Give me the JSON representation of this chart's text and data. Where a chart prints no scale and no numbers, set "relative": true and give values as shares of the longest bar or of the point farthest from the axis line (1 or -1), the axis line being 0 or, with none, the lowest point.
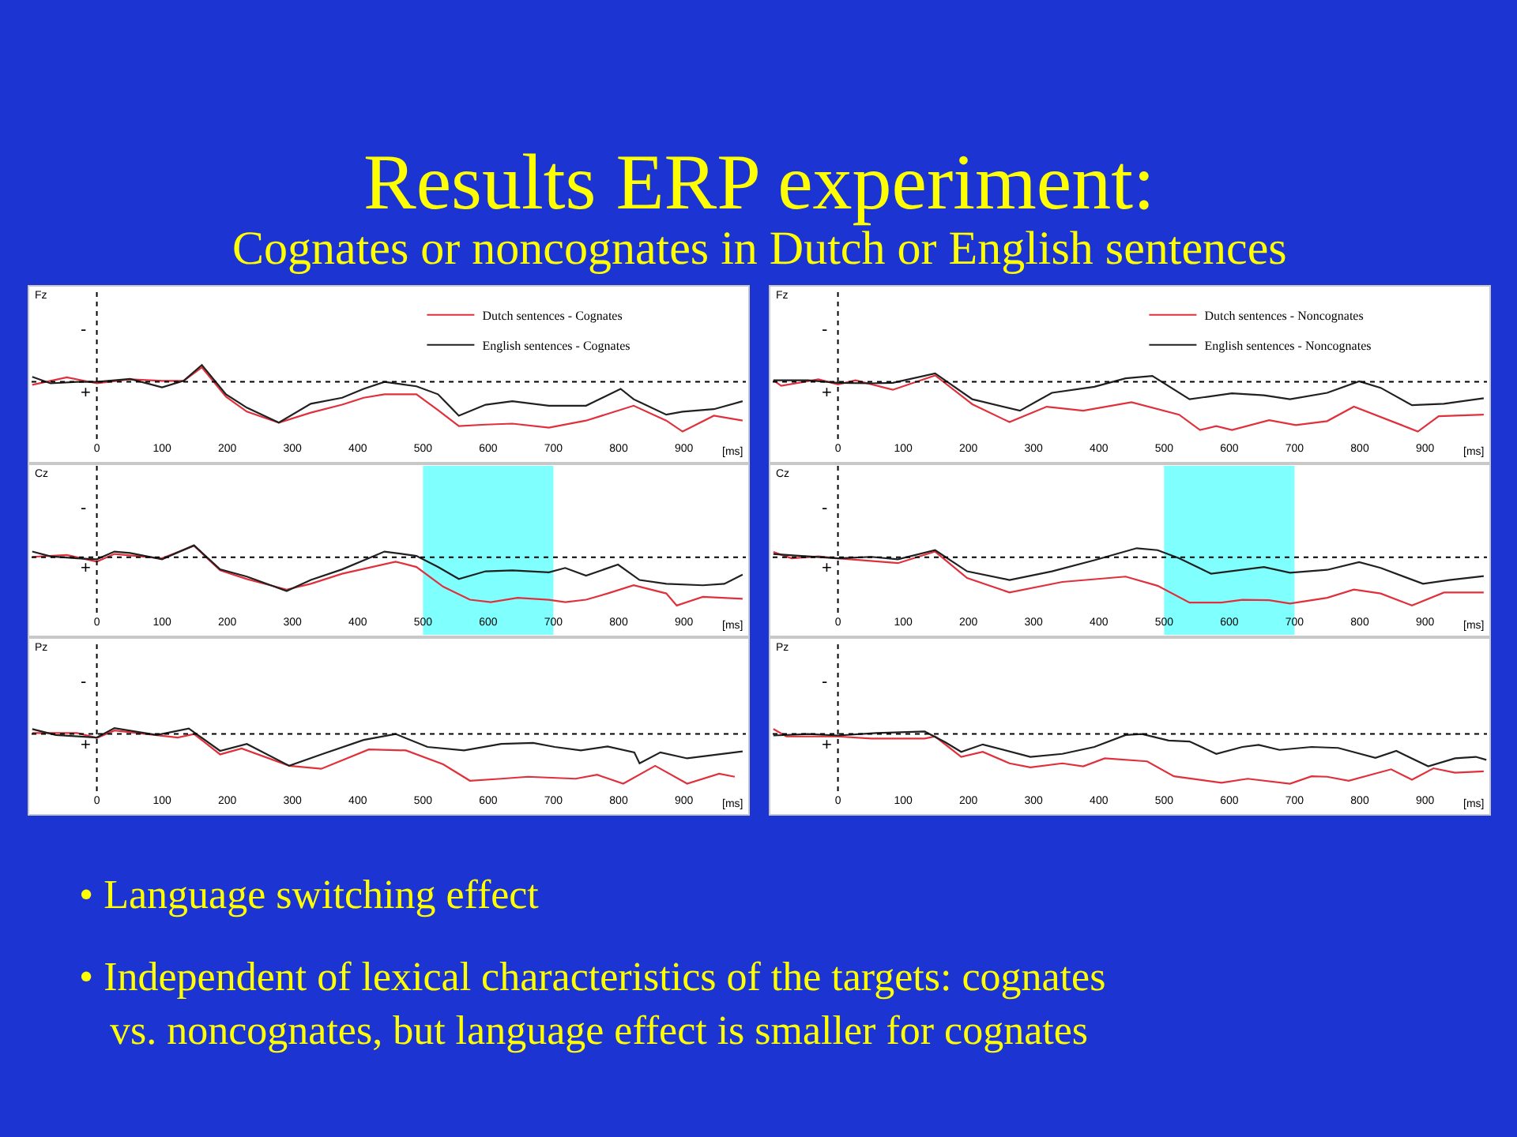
{
  "chart_data": [
    {
      "type": "other",
      "title": "Results ERP experiment:",
      "subtitle": "Cognates or noncognates in Dutch or English sentences",
      "annotations": [
        "• Language switching effect",
        "• Independent of lexical characteristics of the targets: cognates vs. noncognates, but language effect is smaller for cognates"
      ]
    },
    {
      "type": "line",
      "title": "Fz",
      "xlabel": "[ms]",
      "relative": true,
      "xlim": [
        -100,
        995
      ],
      "xticks": [
        0,
        100,
        200,
        300,
        400,
        500,
        600,
        700,
        800,
        900
      ],
      "legend": "top right",
      "annotations": [
        "-",
        "+"
      ],
      "ref_lines": [
        {
          "axis": "x",
          "value": 0,
          "line_style": "dotted",
          "color": "#000000"
        }
      ],
      "series": [
        {
          "name": "Dutch sentences - Cognates",
          "color": "#e0303c",
          "x": [
            -99,
            -71,
            -46,
            0,
            51,
            100,
            133,
            161,
            198,
            230,
            279,
            328,
            376,
            409,
            441,
            490,
            523,
            555,
            596,
            637,
            693,
            750,
            823,
            873,
            898,
            946,
            990
          ],
          "values": [
            -0.06,
            0.02,
            0.09,
            -0.03,
            0.05,
            0.02,
            0.02,
            0.29,
            -0.3,
            -0.6,
            -0.82,
            -0.62,
            -0.46,
            -0.32,
            -0.25,
            -0.25,
            -0.57,
            -0.89,
            -0.86,
            -0.84,
            -0.92,
            -0.78,
            -0.48,
            -0.78,
            -1,
            -0.68,
            -0.78
          ]
        },
        {
          "name": "English sentences - Cognates",
          "color": "#202020",
          "x": [
            -99,
            -71,
            -30,
            0,
            51,
            100,
            133,
            161,
            198,
            230,
            279,
            328,
            376,
            409,
            441,
            490,
            523,
            555,
            596,
            637,
            693,
            750,
            803,
            823,
            873,
            898,
            946,
            990
          ],
          "values": [
            0.1,
            -0.03,
            0,
            0,
            0.06,
            -0.11,
            0.02,
            0.34,
            -0.25,
            -0.52,
            -0.82,
            -0.44,
            -0.32,
            -0.14,
            0,
            -0.09,
            -0.25,
            -0.68,
            -0.46,
            -0.39,
            -0.48,
            -0.48,
            -0.14,
            -0.35,
            -0.66,
            -0.6,
            -0.55,
            -0.39
          ]
        }
      ]
    },
    {
      "type": "line",
      "title": "Fz",
      "xlabel": "[ms]",
      "relative": true,
      "xlim": [
        -100,
        995
      ],
      "xticks": [
        0,
        100,
        200,
        300,
        400,
        500,
        600,
        700,
        800,
        900
      ],
      "legend": "top right",
      "annotations": [
        "-",
        "+"
      ],
      "ref_lines": [
        {
          "axis": "x",
          "value": 0,
          "line_style": "dotted",
          "color": "#000000"
        }
      ],
      "series": [
        {
          "name": "Dutch sentences - Noncognates",
          "color": "#e0303c",
          "x": [
            -99,
            -87,
            -30,
            0,
            27,
            84,
            149,
            206,
            263,
            320,
            376,
            450,
            523,
            555,
            580,
            604,
            661,
            702,
            750,
            791,
            864,
            889,
            921,
            990
          ],
          "values": [
            0.03,
            -0.08,
            0.05,
            -0.05,
            0.03,
            -0.16,
            0.13,
            -0.45,
            -0.81,
            -0.5,
            -0.58,
            -0.41,
            -0.66,
            -0.97,
            -0.89,
            -0.97,
            -0.77,
            -0.87,
            -0.79,
            -0.5,
            -0.87,
            -1,
            -0.69,
            -0.66
          ]
        },
        {
          "name": "English sentences - Noncognates",
          "color": "#202020",
          "x": [
            -99,
            -46,
            0,
            51,
            84,
            149,
            206,
            279,
            328,
            393,
            441,
            482,
            539,
            604,
            653,
            693,
            750,
            799,
            832,
            880,
            929,
            990
          ],
          "values": [
            0.03,
            0.03,
            -0.02,
            -0.03,
            -0.02,
            0.17,
            -0.35,
            -0.58,
            -0.22,
            -0.1,
            0.07,
            0.12,
            -0.35,
            -0.23,
            -0.27,
            -0.35,
            -0.22,
            0.01,
            -0.12,
            -0.47,
            -0.44,
            -0.33
          ]
        }
      ]
    },
    {
      "type": "line",
      "title": "Cz",
      "xlabel": "[ms]",
      "relative": true,
      "xlim": [
        -100,
        995
      ],
      "xticks": [
        0,
        100,
        200,
        300,
        400,
        500,
        600,
        700,
        800,
        900
      ],
      "annotations": [
        "-",
        "+"
      ],
      "ref_lines": [
        {
          "axis": "x",
          "value": 0,
          "line_style": "dotted",
          "color": "#000000"
        }
      ],
      "bands": [
        {
          "axis": "x",
          "from": 500,
          "to": 700,
          "color": "#80ffff"
        }
      ],
      "series": [
        {
          "color": "#e0303c",
          "x": [
            -99,
            -46,
            0,
            27,
            100,
            149,
            189,
            230,
            291,
            328,
            376,
            458,
            490,
            531,
            572,
            604,
            645,
            693,
            718,
            750,
            783,
            823,
            873,
            889,
            929,
            990
          ],
          "values": [
            0.01,
            0.05,
            -0.09,
            0.07,
            -0.02,
            0.24,
            -0.27,
            -0.45,
            -0.67,
            -0.55,
            -0.34,
            -0.09,
            -0.2,
            -0.61,
            -0.88,
            -0.93,
            -0.84,
            -0.88,
            -0.93,
            -0.88,
            -0.75,
            -0.58,
            -0.75,
            -1,
            -0.82,
            -0.86
          ]
        },
        {
          "color": "#202020",
          "x": [
            -99,
            -71,
            -30,
            0,
            27,
            51,
            100,
            149,
            189,
            230,
            291,
            328,
            376,
            441,
            490,
            523,
            555,
            596,
            637,
            693,
            718,
            750,
            799,
            832,
            873,
            929,
            962,
            990
          ],
          "values": [
            0.12,
            0.02,
            -0.02,
            -0.04,
            0.12,
            0.09,
            -0.04,
            0.25,
            -0.25,
            -0.4,
            -0.7,
            -0.47,
            -0.25,
            0.12,
            0.03,
            -0.2,
            -0.45,
            -0.29,
            -0.27,
            -0.31,
            -0.22,
            -0.38,
            -0.15,
            -0.47,
            -0.55,
            -0.58,
            -0.55,
            -0.36
          ]
        }
      ]
    },
    {
      "type": "line",
      "title": "Cz",
      "xlabel": "[ms]",
      "relative": true,
      "xlim": [
        -100,
        995
      ],
      "xticks": [
        0,
        100,
        200,
        300,
        400,
        500,
        600,
        700,
        800,
        900
      ],
      "annotations": [
        "-",
        "+"
      ],
      "ref_lines": [
        {
          "axis": "x",
          "value": 0,
          "line_style": "dotted",
          "color": "#000000"
        }
      ],
      "bands": [
        {
          "axis": "x",
          "from": 500,
          "to": 700,
          "color": "#80ffff"
        }
      ],
      "series": [
        {
          "color": "#e0303c",
          "x": [
            -99,
            -71,
            -30,
            0,
            92,
            149,
            198,
            263,
            344,
            441,
            490,
            539,
            588,
            620,
            661,
            693,
            750,
            791,
            832,
            880,
            929,
            990
          ],
          "values": [
            0.11,
            -0.02,
            0.02,
            -0.02,
            -0.12,
            0.12,
            -0.43,
            -0.73,
            -0.51,
            -0.4,
            -0.59,
            -0.94,
            -0.94,
            -0.88,
            -0.89,
            -0.96,
            -0.84,
            -0.67,
            -0.75,
            -1,
            -0.73,
            -0.73
          ]
        },
        {
          "color": "#202020",
          "x": [
            -99,
            -46,
            0,
            51,
            92,
            149,
            198,
            263,
            328,
            393,
            458,
            490,
            523,
            572,
            653,
            693,
            750,
            799,
            832,
            897,
            937,
            990
          ],
          "values": [
            0.07,
            0.02,
            -0.02,
            0.01,
            -0.04,
            0.15,
            -0.29,
            -0.47,
            -0.29,
            -0.06,
            0.19,
            0.15,
            -0.02,
            -0.34,
            -0.2,
            -0.32,
            -0.26,
            -0.1,
            -0.22,
            -0.55,
            -0.47,
            -0.39
          ]
        }
      ]
    },
    {
      "type": "line",
      "title": "Pz",
      "xlabel": "[ms]",
      "relative": true,
      "xlim": [
        -100,
        995
      ],
      "xticks": [
        0,
        100,
        200,
        300,
        400,
        500,
        600,
        700,
        800,
        900
      ],
      "annotations": [
        "-",
        "+"
      ],
      "ref_lines": [
        {
          "axis": "x",
          "value": 0,
          "line_style": "dotted",
          "color": "#000000"
        }
      ],
      "series": [
        {
          "color": "#e0303c",
          "x": [
            -99,
            -30,
            0,
            27,
            76,
            124,
            149,
            189,
            222,
            295,
            344,
            417,
            474,
            531,
            572,
            620,
            661,
            734,
            767,
            807,
            856,
            905,
            954,
            978
          ],
          "values": [
            0.02,
            0.02,
            -0.08,
            0.07,
            0,
            -0.07,
            0,
            -0.41,
            -0.29,
            -0.64,
            -0.7,
            -0.31,
            -0.33,
            -0.61,
            -0.94,
            -0.9,
            -0.86,
            -0.9,
            -0.82,
            -1,
            -0.64,
            -1,
            -0.8,
            -0.86
          ]
        },
        {
          "color": "#202020",
          "x": [
            -99,
            -63,
            0,
            27,
            92,
            141,
            189,
            230,
            295,
            344,
            409,
            458,
            507,
            563,
            620,
            669,
            702,
            742,
            783,
            824,
            832,
            864,
            905,
            990
          ],
          "values": [
            0.1,
            -0.02,
            -0.07,
            0.12,
            -0.02,
            0.11,
            -0.34,
            -0.2,
            -0.64,
            -0.41,
            -0.12,
            0,
            -0.26,
            -0.33,
            -0.2,
            -0.18,
            -0.26,
            -0.33,
            -0.25,
            -0.37,
            -0.59,
            -0.37,
            -0.49,
            -0.35
          ]
        }
      ]
    },
    {
      "type": "line",
      "title": "Pz",
      "xlabel": "[ms]",
      "relative": true,
      "xlim": [
        -100,
        995
      ],
      "xticks": [
        0,
        100,
        200,
        300,
        400,
        500,
        600,
        700,
        800,
        900
      ],
      "annotations": [
        "-",
        "+"
      ],
      "ref_lines": [
        {
          "axis": "x",
          "value": 0,
          "line_style": "dotted",
          "color": "#000000"
        }
      ],
      "series": [
        {
          "color": "#e0303c",
          "x": [
            -99,
            -79,
            0,
            51,
            133,
            149,
            189,
            222,
            263,
            295,
            344,
            376,
            409,
            474,
            515,
            588,
            628,
            693,
            726,
            750,
            783,
            848,
            880,
            913,
            946,
            990
          ],
          "values": [
            0.1,
            -0.05,
            -0.05,
            -0.09,
            -0.09,
            -0.05,
            -0.46,
            -0.36,
            -0.59,
            -0.67,
            -0.59,
            -0.65,
            -0.49,
            -0.55,
            -0.85,
            -0.98,
            -0.9,
            -1,
            -0.85,
            -0.86,
            -0.94,
            -0.71,
            -0.92,
            -0.69,
            -0.78,
            -0.75
          ]
        },
        {
          "color": "#202020",
          "x": [
            -99,
            -46,
            0,
            59,
            133,
            165,
            189,
            222,
            295,
            344,
            393,
            441,
            466,
            507,
            539,
            580,
            620,
            645,
            677,
            726,
            767,
            824,
            856,
            905,
            946,
            978,
            994
          ],
          "values": [
            -0.03,
            0,
            -0.03,
            0.02,
            0.05,
            -0.17,
            -0.36,
            -0.21,
            -0.46,
            -0.4,
            -0.26,
            -0.02,
            0,
            -0.13,
            -0.15,
            -0.4,
            -0.26,
            -0.22,
            -0.32,
            -0.26,
            -0.28,
            -0.48,
            -0.34,
            -0.65,
            -0.49,
            -0.46,
            -0.52
          ]
        }
      ]
    }
  ]
}
